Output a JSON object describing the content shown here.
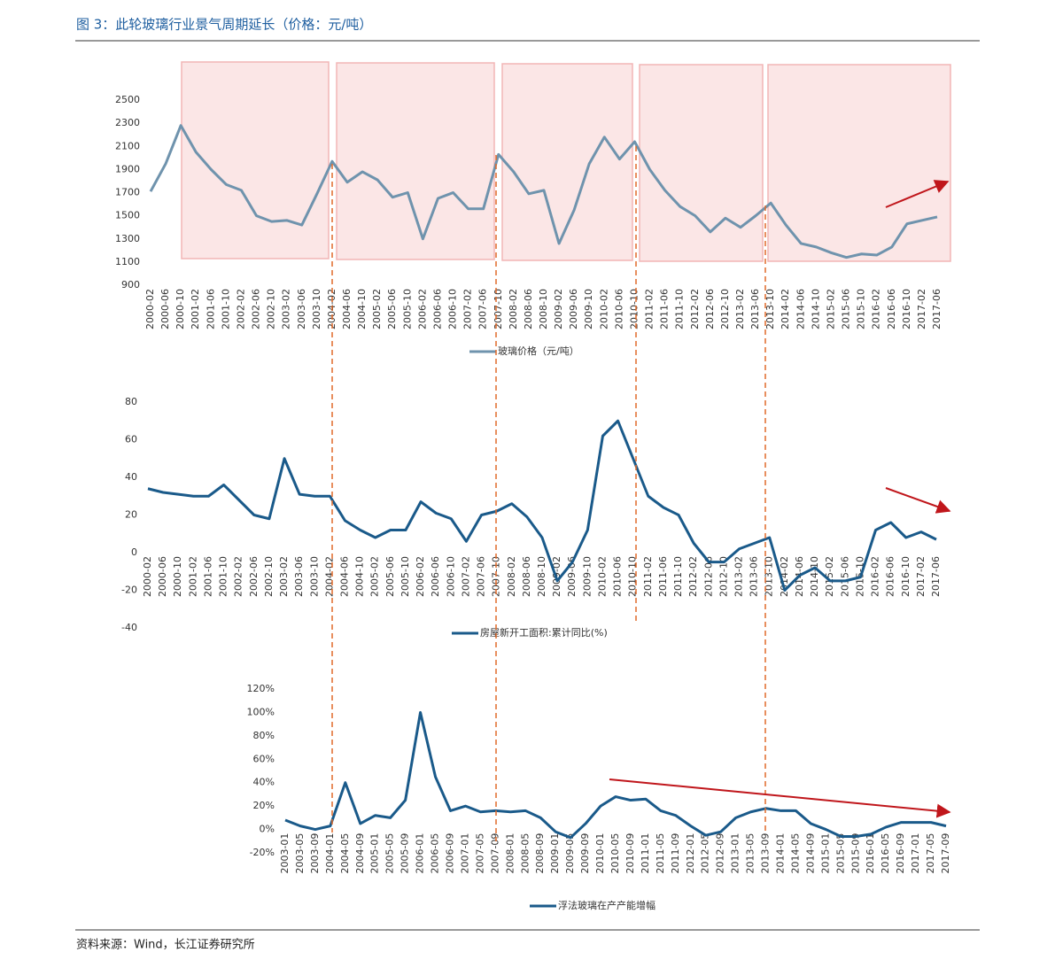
{
  "title": "图 3：此轮玻璃行业景气周期延长（价格：元/吨）",
  "source": "资料来源：Wind，长江证券研究所",
  "chart_data": [
    {
      "type": "line",
      "categories": [
        "2000-02",
        "2000-06",
        "2000-10",
        "2001-02",
        "2001-06",
        "2001-10",
        "2002-02",
        "2002-06",
        "2002-10",
        "2003-02",
        "2003-06",
        "2003-10",
        "2004-02",
        "2004-06",
        "2004-10",
        "2005-02",
        "2005-06",
        "2005-10",
        "2006-02",
        "2006-06",
        "2006-10",
        "2007-02",
        "2007-06",
        "2007-10",
        "2008-02",
        "2008-06",
        "2008-10",
        "2009-02",
        "2009-06",
        "2009-10",
        "2010-02",
        "2010-06",
        "2010-10",
        "2011-02",
        "2011-06",
        "2011-10",
        "2012-02",
        "2012-06",
        "2012-10",
        "2013-02",
        "2013-06",
        "2013-10",
        "2014-02",
        "2014-06",
        "2014-10",
        "2015-02",
        "2015-06",
        "2015-10",
        "2016-02",
        "2016-06",
        "2016-10",
        "2017-02",
        "2017-06"
      ],
      "series": [
        {
          "name": "玻璃价格（元/吨）",
          "color": "#6f93ad",
          "values": [
            1710,
            1950,
            2280,
            2050,
            1900,
            1770,
            1720,
            1500,
            1450,
            1460,
            1420,
            1690,
            1970,
            1790,
            1880,
            1810,
            1660,
            1700,
            1300,
            1650,
            1700,
            1560,
            1560,
            2030,
            1880,
            1690,
            1720,
            1260,
            1550,
            1950,
            2180,
            1990,
            2140,
            1900,
            1720,
            1580,
            1500,
            1360,
            1480,
            1400,
            1500,
            1610,
            1420,
            1260,
            1230,
            1180,
            1140,
            1170,
            1160,
            1230,
            1430,
            1460,
            1490
          ]
        }
      ],
      "ylim": [
        900,
        2500
      ],
      "yticks": [
        900,
        1100,
        1300,
        1500,
        1700,
        1900,
        2100,
        2300,
        2500
      ]
    },
    {
      "type": "line",
      "categories": [
        "2000-02",
        "2000-06",
        "2000-10",
        "2001-02",
        "2001-06",
        "2001-10",
        "2002-02",
        "2002-06",
        "2002-10",
        "2003-02",
        "2003-06",
        "2003-10",
        "2004-02",
        "2004-06",
        "2004-10",
        "2005-02",
        "2005-06",
        "2005-10",
        "2006-02",
        "2006-06",
        "2006-10",
        "2007-02",
        "2007-06",
        "2007-10",
        "2008-02",
        "2008-06",
        "2008-10",
        "2009-02",
        "2009-06",
        "2009-10",
        "2010-02",
        "2010-06",
        "2010-10",
        "2011-02",
        "2011-06",
        "2011-10",
        "2012-02",
        "2012-06",
        "2012-10",
        "2013-02",
        "2013-06",
        "2013-10",
        "2014-02",
        "2014-06",
        "2014-10",
        "2015-02",
        "2015-06",
        "2015-10",
        "2016-02",
        "2016-06",
        "2016-10",
        "2017-02",
        "2017-06"
      ],
      "series": [
        {
          "name": "房屋新开工面积:累计同比(%)",
          "color": "#1a5a8a",
          "values": [
            34,
            32,
            31,
            30,
            30,
            36,
            28,
            20,
            18,
            50,
            31,
            30,
            30,
            17,
            12,
            8,
            12,
            12,
            27,
            21,
            18,
            6,
            20,
            22,
            26,
            19,
            8,
            -15,
            -5,
            12,
            62,
            70,
            50,
            30,
            24,
            20,
            5,
            -5,
            -5,
            2,
            5,
            8,
            -20,
            -12,
            -8,
            -15,
            -15,
            -13,
            12,
            16,
            8,
            11,
            7
          ]
        }
      ],
      "ylim": [
        -40,
        80
      ],
      "yticks": [
        -40,
        -20,
        0,
        20,
        40,
        60,
        80
      ]
    },
    {
      "type": "line",
      "categories": [
        "2003-01",
        "2003-05",
        "2003-09",
        "2004-01",
        "2004-05",
        "2004-09",
        "2005-01",
        "2005-05",
        "2005-09",
        "2006-01",
        "2006-05",
        "2006-09",
        "2007-01",
        "2007-05",
        "2007-09",
        "2008-01",
        "2008-05",
        "2008-09",
        "2009-01",
        "2009-05",
        "2009-09",
        "2010-01",
        "2010-05",
        "2010-09",
        "2011-01",
        "2011-05",
        "2011-09",
        "2012-01",
        "2012-05",
        "2012-09",
        "2013-01",
        "2013-05",
        "2013-09",
        "2014-01",
        "2014-05",
        "2014-09",
        "2015-01",
        "2015-05",
        "2015-09",
        "2016-01",
        "2016-05",
        "2016-09",
        "2017-01",
        "2017-05",
        "2017-09"
      ],
      "series": [
        {
          "name": "浮法玻璃在产产能增幅",
          "color": "#1a5a8a",
          "values": [
            8,
            3,
            0,
            3,
            40,
            5,
            12,
            10,
            25,
            100,
            45,
            16,
            20,
            15,
            16,
            15,
            16,
            10,
            -2,
            -7,
            5,
            20,
            28,
            25,
            26,
            16,
            12,
            3,
            -5,
            -2,
            10,
            15,
            18,
            16,
            16,
            5,
            0,
            -6,
            -6,
            -4,
            2,
            6,
            6,
            6,
            3
          ]
        }
      ],
      "ylim": [
        -20,
        120
      ],
      "yticks": [
        {
          "value": -20,
          "label": "-20%"
        },
        {
          "value": 0,
          "label": "0%"
        },
        {
          "value": 20,
          "label": "20%"
        },
        {
          "value": 40,
          "label": "40%"
        },
        {
          "value": 60,
          "label": "60%"
        },
        {
          "value": 80,
          "label": "80%"
        },
        {
          "value": 100,
          "label": "100%"
        },
        {
          "value": 120,
          "label": "120%"
        }
      ]
    }
  ]
}
